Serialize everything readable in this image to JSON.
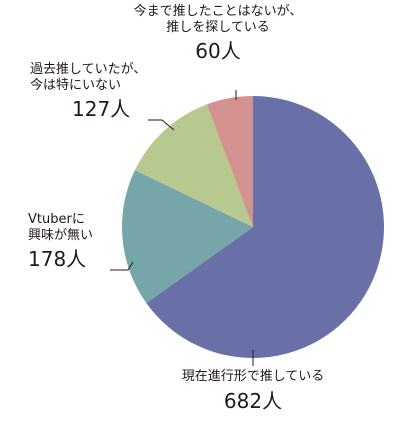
{
  "chart_data": {
    "type": "pie",
    "start_angle_deg": 0,
    "direction": "clockwise",
    "slices": [
      {
        "label_line1": "現在進行形で推している",
        "label_line2": "",
        "value_text": "682人",
        "value": 682,
        "color": "#6970a8"
      },
      {
        "label_line1": "Vtuberに",
        "label_line2": "興味が無い",
        "value_text": "178人",
        "value": 178,
        "color": "#77a6aa"
      },
      {
        "label_line1": "過去推していたが、",
        "label_line2": "今は特にいない",
        "value_text": "127人",
        "value": 127,
        "color": "#b7c98e"
      },
      {
        "label_line1": "今まで推したことはないが、",
        "label_line2": "推しを探している",
        "value_text": "60人",
        "value": 60,
        "color": "#d39290"
      }
    ]
  }
}
